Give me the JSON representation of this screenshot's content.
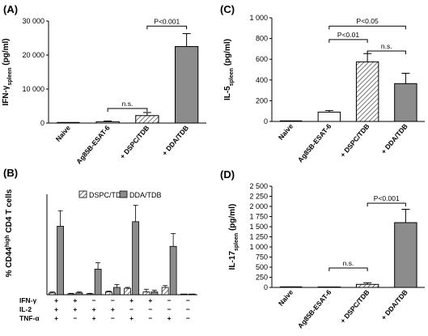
{
  "chart_data": [
    {
      "panel": "(A)",
      "type": "bar",
      "ylabel": "IFN-γ",
      "ylabel_sub": "spleen",
      "ylabel_unit": " (pg/ml)",
      "ylim": [
        0,
        30000
      ],
      "yticks": [
        0,
        10000,
        20000,
        30000
      ],
      "ytick_labels": [
        "0",
        "10 000",
        "20 000",
        "30 000"
      ],
      "categories": [
        "Naive",
        "Ag85B-ESAT-6",
        "+ DSPC/TDB",
        "+ DDA/TDB"
      ],
      "values": [
        0,
        400,
        2200,
        22500
      ],
      "errors": [
        0,
        200,
        900,
        3800
      ],
      "fills": [
        "none",
        "white",
        "hatch",
        "gray"
      ],
      "annotations": [
        {
          "text": "n.s.",
          "from": 1,
          "to": 2,
          "y": 4300
        },
        {
          "text": "P<0.001",
          "from": 2,
          "to": 3,
          "y": 28500
        }
      ]
    },
    {
      "panel": "(C)",
      "type": "bar",
      "ylabel": "IL-5",
      "ylabel_sub": "spleen",
      "ylabel_unit": " (pg/ml)",
      "ylim": [
        0,
        1000
      ],
      "yticks": [
        0,
        200,
        400,
        600,
        800,
        1000
      ],
      "ytick_labels": [
        "0",
        "200",
        "400",
        "600",
        "800",
        "1 000"
      ],
      "categories": [
        "Naive",
        "Ag85B-ESAT-6",
        "+ DSPC/TDB",
        "+ DDA/TDB"
      ],
      "values": [
        0,
        90,
        575,
        365
      ],
      "errors": [
        0,
        15,
        80,
        100
      ],
      "fills": [
        "none",
        "white",
        "hatch",
        "gray"
      ],
      "annotations": [
        {
          "text": "P<0.05",
          "from": 1,
          "to": 3,
          "y": 920
        },
        {
          "text": "P<0.01",
          "from": 1,
          "to": 2,
          "y": 790
        },
        {
          "text": "n.s.",
          "from": 2,
          "to": 3,
          "y": 680
        }
      ]
    },
    {
      "panel": "(B)",
      "type": "bar",
      "ylabel": "% CD44",
      "ylabel_sup": "high",
      "ylabel_rest": " CD4 T cells",
      "ylim": [
        0,
        1.1
      ],
      "yticks": [],
      "legend": [
        "DSPC/TDB",
        "DDA/TDB"
      ],
      "row_labels": [
        "IFN-γ",
        "IL-2",
        "TNF-α"
      ],
      "groups": [
        {
          "signs": [
            "+",
            "+",
            "+"
          ],
          "dspc": 0.02,
          "dspc_err": 0.01,
          "dda": 0.75,
          "dda_err": 0.17
        },
        {
          "signs": [
            "+",
            "+",
            "−"
          ],
          "dspc": 0.01,
          "dspc_err": 0.005,
          "dda": 0.02,
          "dda_err": 0.01
        },
        {
          "signs": [
            "−",
            "+",
            "+"
          ],
          "dspc": 0.01,
          "dspc_err": 0.005,
          "dda": 0.28,
          "dda_err": 0.07
        },
        {
          "signs": [
            "−",
            "+",
            "−"
          ],
          "dspc": 0.03,
          "dspc_err": 0.01,
          "dda": 0.08,
          "dda_err": 0.03
        },
        {
          "signs": [
            "+",
            "−",
            "+"
          ],
          "dspc": 0.07,
          "dspc_err": 0.01,
          "dda": 0.8,
          "dda_err": 0.18
        },
        {
          "signs": [
            "+",
            "−",
            "−"
          ],
          "dspc": 0.03,
          "dspc_err": 0.03,
          "dda": 0.03,
          "dda_err": 0.02
        },
        {
          "signs": [
            "−",
            "−",
            "+"
          ],
          "dspc": 0.08,
          "dspc_err": 0.02,
          "dda": 0.53,
          "dda_err": 0.14
        },
        {
          "signs": [
            "−",
            "−",
            "−"
          ],
          "dspc": 0.0,
          "dspc_err": 0.0,
          "dda": 0.0,
          "dda_err": 0.0
        }
      ]
    },
    {
      "panel": "(D)",
      "type": "bar",
      "ylabel": "IL-17",
      "ylabel_sub": "spleen",
      "ylabel_unit": " (pg/ml)",
      "ylim": [
        0,
        2500
      ],
      "yticks": [
        0,
        250,
        500,
        750,
        1000,
        1250,
        1500,
        1750,
        2000,
        2250,
        2500
      ],
      "ytick_labels": [
        "0",
        "250",
        "500",
        "750",
        "1 000",
        "1 250",
        "1 500",
        "1 750",
        "2 000",
        "2 250",
        "2 500"
      ],
      "categories": [
        "Naive",
        "Ag85B-ESAT-6",
        "+ DSPC/TDB",
        "+ DDA/TDB"
      ],
      "values": [
        0,
        0,
        75,
        1600
      ],
      "errors": [
        0,
        0,
        40,
        330
      ],
      "fills": [
        "none",
        "white",
        "hatch",
        "gray"
      ],
      "annotations": [
        {
          "text": "n.s.",
          "from": 1,
          "to": 2,
          "y": 480
        },
        {
          "text": "P<0.001",
          "from": 2,
          "to": 3,
          "y": 2080
        }
      ]
    }
  ]
}
